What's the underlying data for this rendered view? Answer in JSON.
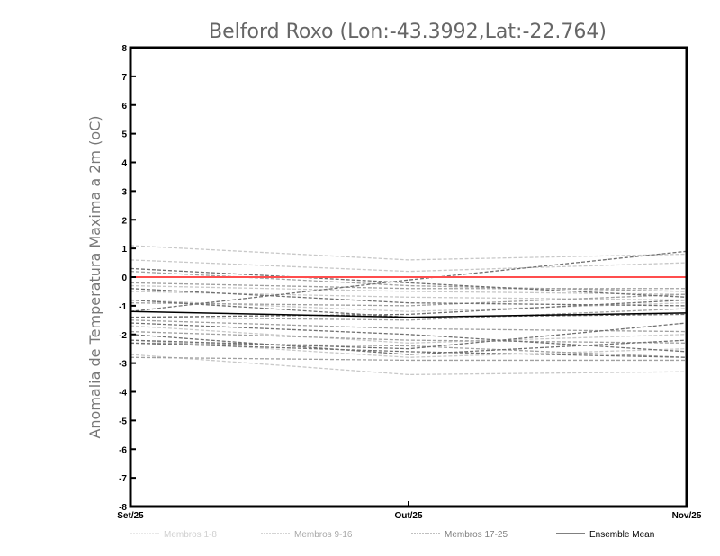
{
  "chart_data": {
    "type": "line",
    "title": "Belford Roxo (Lon:-43.3992,Lat:-22.764)",
    "xlabel": "",
    "ylabel": "Anomalia de Temperatura Maxima a 2m (oC)",
    "categories": [
      "Set/25",
      "Out/25",
      "Nov/25"
    ],
    "ylim": [
      -8,
      8
    ],
    "yticks": [
      "-8",
      "-7",
      "-6",
      "-5",
      "-4",
      "-3",
      "-2",
      "-1",
      "0",
      "1",
      "2",
      "3",
      "4",
      "5",
      "6",
      "7",
      "8"
    ],
    "reference_line": {
      "value": 0,
      "color": "#ff4d4d"
    },
    "groups": [
      {
        "name": "Membros 1-8",
        "color": "#c8c8c8",
        "dashed": true,
        "series": [
          [
            1.1,
            0.6,
            0.8
          ],
          [
            0.6,
            0.2,
            0.5
          ],
          [
            -0.3,
            -0.5,
            -0.6
          ],
          [
            -0.8,
            -1.2,
            -0.9
          ],
          [
            -1.7,
            -2.3,
            -2.0
          ],
          [
            -2.7,
            -3.4,
            -3.3
          ],
          [
            -2.2,
            -2.8,
            -2.5
          ],
          [
            -0.5,
            -0.7,
            -0.8
          ]
        ]
      },
      {
        "name": "Membros 9-16",
        "color": "#a0a0a0",
        "dashed": true,
        "series": [
          [
            0.2,
            -0.3,
            -0.5
          ],
          [
            -0.9,
            -1.0,
            -0.6
          ],
          [
            -1.4,
            -1.5,
            -1.1
          ],
          [
            -2.3,
            -2.4,
            -2.8
          ],
          [
            -1.9,
            -2.2,
            -2.3
          ],
          [
            -2.8,
            -2.9,
            -2.9
          ],
          [
            -0.2,
            -0.4,
            -0.4
          ],
          [
            -1.5,
            -1.8,
            -1.9
          ]
        ]
      },
      {
        "name": "Membros 17-25",
        "color": "#707070",
        "dashed": true,
        "series": [
          [
            -1.2,
            -0.1,
            0.9
          ],
          [
            0.3,
            -0.2,
            -0.7
          ],
          [
            -0.8,
            -1.4,
            -1.3
          ],
          [
            -1.4,
            -1.3,
            -0.8
          ],
          [
            -2.0,
            -2.7,
            -2.2
          ],
          [
            -2.3,
            -2.6,
            -2.8
          ],
          [
            -2.2,
            -2.5,
            -1.6
          ],
          [
            -1.6,
            -2.0,
            -2.6
          ],
          [
            -0.4,
            -0.9,
            -1.0
          ]
        ]
      },
      {
        "name": "Ensemble Mean",
        "color": "#000000",
        "dashed": false,
        "series": [
          [
            -1.2,
            -1.4,
            -1.25
          ]
        ]
      }
    ],
    "legend_position": "bottom",
    "grid": false
  }
}
